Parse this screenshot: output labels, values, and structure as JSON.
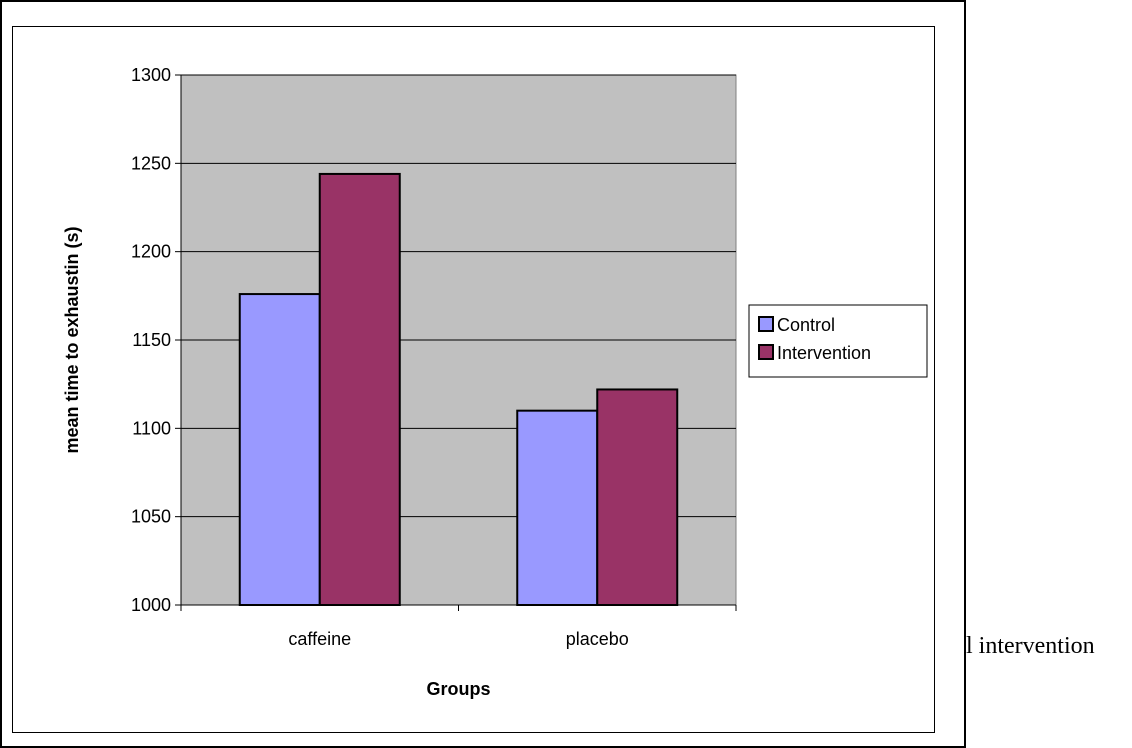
{
  "document": {
    "trailing_text": "l intervention"
  },
  "chart_data": {
    "type": "bar",
    "categories": [
      "caffeine",
      "placebo"
    ],
    "series": [
      {
        "name": "Control",
        "values": [
          1176,
          1110
        ],
        "color": "#9999ff"
      },
      {
        "name": "Intervention",
        "values": [
          1244,
          1122
        ],
        "color": "#993366"
      }
    ],
    "xlabel": "Groups",
    "ylabel": "mean time to exhaustin (s)",
    "ylim": [
      1000,
      1300
    ],
    "yticks": [
      1000,
      1050,
      1100,
      1150,
      1200,
      1250,
      1300
    ],
    "grid": true,
    "legend_position": "right",
    "plot_background": "#c0c0c0"
  }
}
